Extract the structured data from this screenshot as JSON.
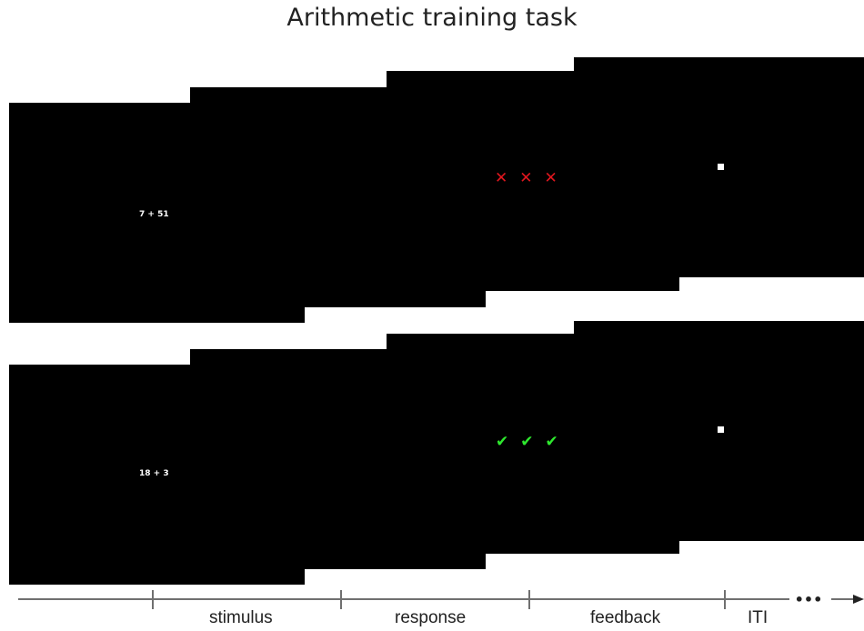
{
  "title": "Arithmetic training task",
  "trials": [
    {
      "stimulus": "7 + 51",
      "feedback_type": "incorrect",
      "feedback_icon": "cross-icon",
      "feedback_color": "#e0161e",
      "feedback_marks": [
        "✕",
        "✕",
        "✕"
      ]
    },
    {
      "stimulus": "18 + 3",
      "feedback_type": "correct",
      "feedback_icon": "check-icon",
      "feedback_color": "#2ee82e",
      "feedback_marks": [
        "✔",
        "✔",
        "✔"
      ]
    }
  ],
  "timeline": {
    "phases": [
      "stimulus",
      "response",
      "feedback",
      "ITI"
    ],
    "continuation": "•••"
  },
  "colors": {
    "screen": "#000000",
    "fixation": "#ffffff"
  }
}
